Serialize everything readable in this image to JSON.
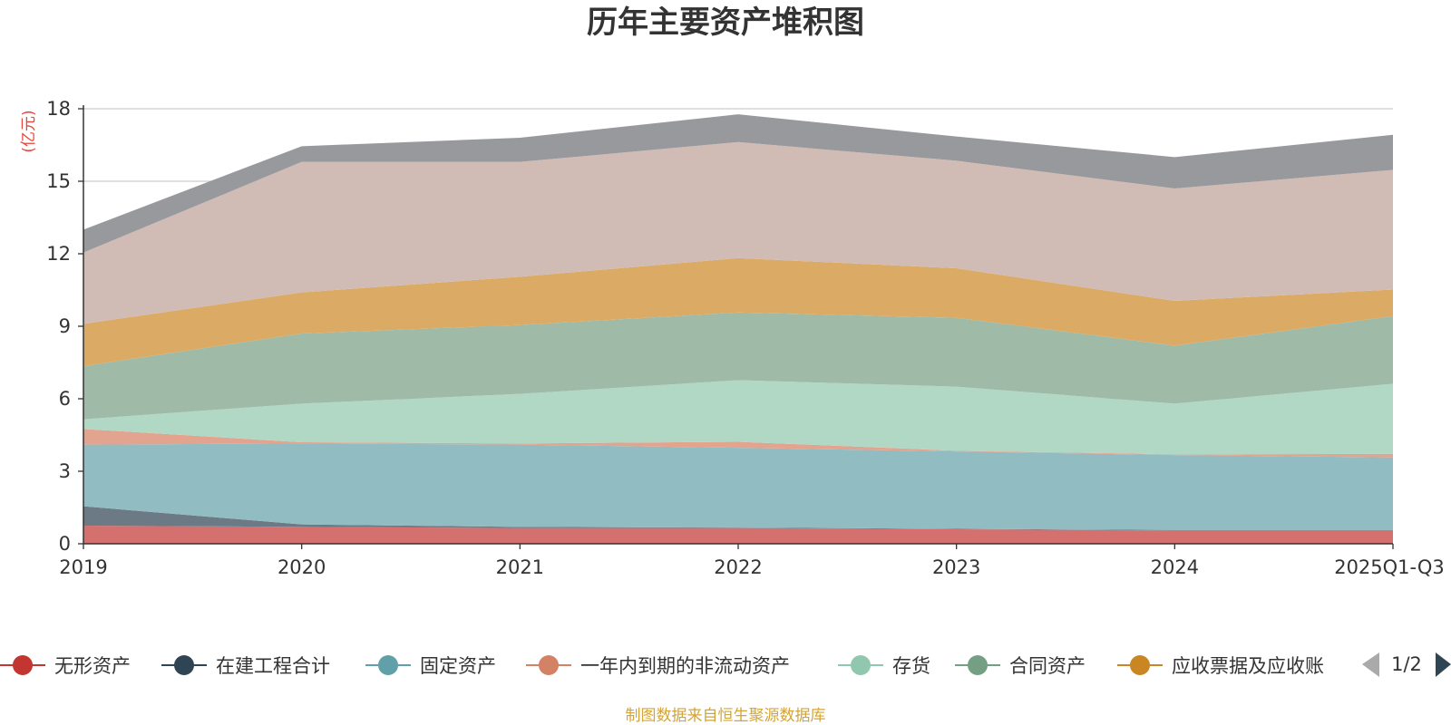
{
  "chart_data": {
    "type": "area",
    "stacked": true,
    "title": "历年主要资产堆积图",
    "unit_label": "(亿元)",
    "categories": [
      "2019",
      "2020",
      "2021",
      "2022",
      "2023",
      "2024",
      "2025Q1-Q3"
    ],
    "ylim": [
      0,
      18
    ],
    "yticks": [
      0,
      3,
      6,
      9,
      12,
      15,
      18
    ],
    "grid": true,
    "series": [
      {
        "name": "无形资产",
        "color": "#c23531",
        "area_color": "#d4706e",
        "values": [
          0.75,
          0.7,
          0.65,
          0.65,
          0.6,
          0.55,
          0.55
        ]
      },
      {
        "name": "在建工程合计",
        "color": "#2f4554",
        "area_color": "#6c7a85",
        "values": [
          0.8,
          0.1,
          0.05,
          0.02,
          0.02,
          0.02,
          0.02
        ]
      },
      {
        "name": "固定资产",
        "color": "#61a0a8",
        "area_color": "#90bcc2",
        "values": [
          2.55,
          3.35,
          3.4,
          3.3,
          3.2,
          3.1,
          3.0
        ]
      },
      {
        "name": "一年内到期的非流动资产",
        "color": "#d48265",
        "area_color": "#e2a38f",
        "values": [
          0.65,
          0.05,
          0.05,
          0.25,
          0.03,
          0.03,
          0.15
        ]
      },
      {
        "name": "存货",
        "color": "#91c7ae",
        "area_color": "#b1d7c5",
        "values": [
          0.4,
          1.6,
          2.05,
          2.55,
          2.65,
          2.1,
          2.9
        ]
      },
      {
        "name": "合同资产",
        "color": "#749f83",
        "area_color": "#9fbba8",
        "values": [
          2.2,
          2.9,
          2.85,
          2.8,
          2.85,
          2.4,
          2.8
        ]
      },
      {
        "name": "应收票据及应收账",
        "color": "#ca8622",
        "area_color": "#dbaa64",
        "values": [
          1.75,
          1.7,
          2.0,
          2.25,
          2.05,
          1.85,
          1.1
        ]
      },
      {
        "name": "",
        "color": "#bda29a",
        "area_color": "#d0bcb5",
        "values": [
          2.95,
          5.4,
          4.75,
          4.8,
          4.45,
          4.65,
          4.95
        ]
      },
      {
        "name": "",
        "color": "#6e7074",
        "area_color": "#98999d",
        "values": [
          0.95,
          0.65,
          1.0,
          1.15,
          1.0,
          1.3,
          1.45
        ]
      }
    ],
    "legend_position": "bottom",
    "legend_page": "1/2",
    "source": "制图数据来自恒生聚源数据库"
  }
}
